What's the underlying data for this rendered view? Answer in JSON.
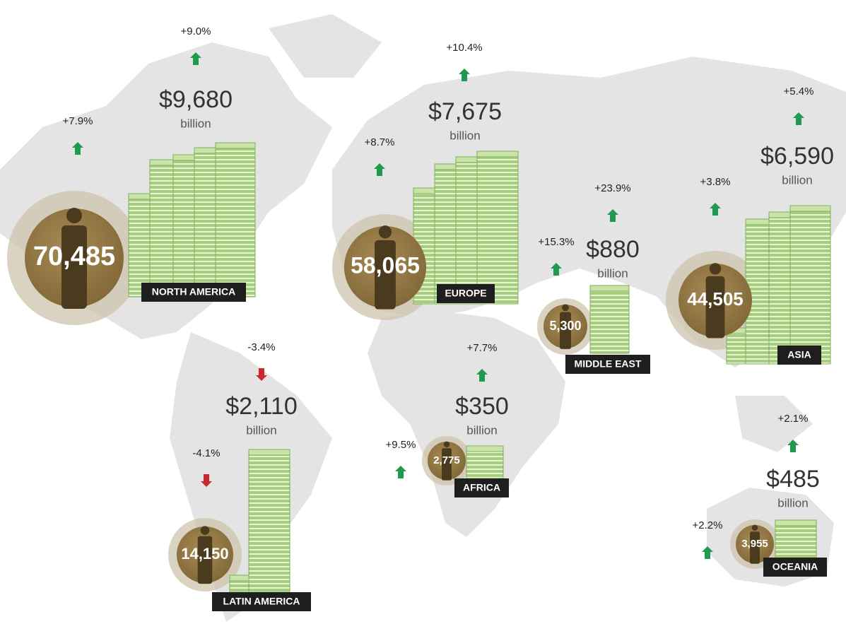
{
  "regions": [
    {
      "name": "NORTH AMERICA",
      "people": "70,485",
      "people_change": "+7.9%",
      "wealth": "$9,680",
      "wealth_unit": "billion",
      "wealth_change": "+9.0%"
    },
    {
      "name": "EUROPE",
      "people": "58,065",
      "people_change": "+8.7%",
      "wealth": "$7,675",
      "wealth_unit": "billion",
      "wealth_change": "+10.4%"
    },
    {
      "name": "MIDDLE EAST",
      "people": "5,300",
      "people_change": "+15.3%",
      "wealth": "$880",
      "wealth_unit": "billion",
      "wealth_change": "+23.9%"
    },
    {
      "name": "ASIA",
      "people": "44,505",
      "people_change": "+3.8%",
      "wealth": "$6,590",
      "wealth_unit": "billion",
      "wealth_change": "+5.4%"
    },
    {
      "name": "LATIN AMERICA",
      "people": "14,150",
      "people_change": "-4.1%",
      "wealth": "$2,110",
      "wealth_unit": "billion",
      "wealth_change": "-3.4%"
    },
    {
      "name": "AFRICA",
      "people": "2,775",
      "people_change": "+9.5%",
      "wealth": "$350",
      "wealth_unit": "billion",
      "wealth_change": "+7.7%"
    },
    {
      "name": "OCEANIA",
      "people": "3,955",
      "people_change": "+2.2%",
      "wealth": "$485",
      "wealth_unit": "billion",
      "wealth_change": "+2.1%"
    }
  ]
}
